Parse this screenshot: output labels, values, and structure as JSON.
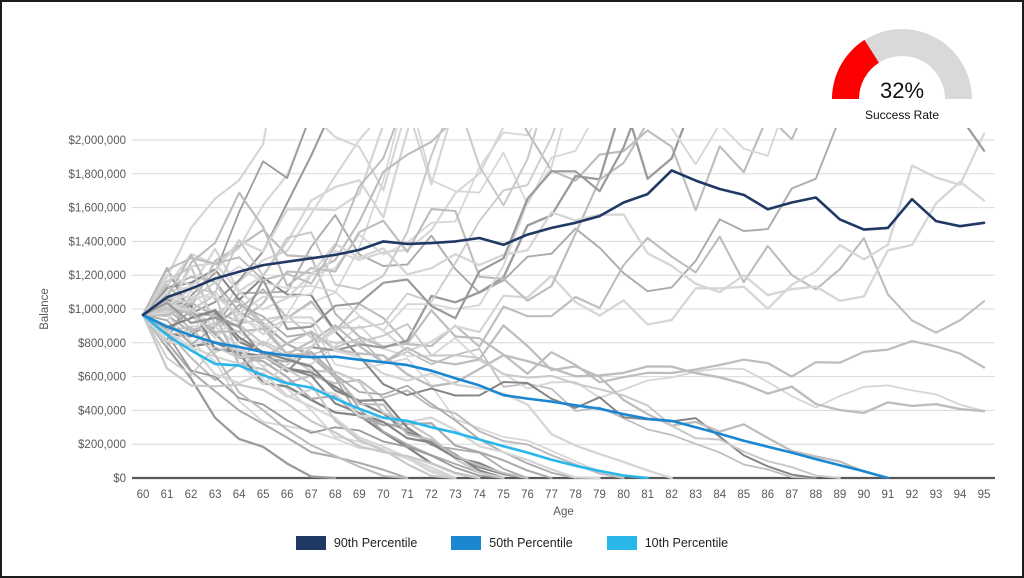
{
  "window": {
    "background": "#ffffff",
    "border_color": "#1c1c1c"
  },
  "gauge": {
    "value_label": "32%",
    "caption": "Success Rate",
    "percent": 32,
    "fill_color": "#ff0000",
    "track_color": "#d9d9d9"
  },
  "chart_data": {
    "type": "line",
    "title": "",
    "xlabel": "Age",
    "ylabel": "Balance",
    "xlim": [
      60,
      95
    ],
    "ylim": [
      0,
      2000000
    ],
    "y_tick_step": 200000,
    "grid": "horizontal",
    "legend_position": "bottom",
    "x_tick_labels": [
      "60",
      "61",
      "62",
      "63",
      "64",
      "65",
      "66",
      "67",
      "68",
      "69",
      "70",
      "71",
      "72",
      "73",
      "74",
      "75",
      "76",
      "77",
      "78",
      "79",
      "80",
      "81",
      "82",
      "83",
      "84",
      "85",
      "86",
      "87",
      "88",
      "89",
      "90",
      "91",
      "92",
      "93",
      "94",
      "95"
    ],
    "y_tick_labels": [
      "$0",
      "$200,000",
      "$400,000",
      "$600,000",
      "$800,000",
      "$1,000,000",
      "$1,200,000",
      "$1,400,000",
      "$1,600,000",
      "$1,800,000",
      "$2,000,000"
    ],
    "axis_color": "#595959",
    "gridline_color": "#d9d9d9",
    "start_age": 60,
    "series": [
      {
        "name": "90th Percentile",
        "color": "#203864",
        "values": [
          965000,
          1070000,
          1120000,
          1180000,
          1220000,
          1260000,
          1280000,
          1300000,
          1320000,
          1350000,
          1400000,
          1385000,
          1390000,
          1400000,
          1420000,
          1380000,
          1440000,
          1480000,
          1510000,
          1550000,
          1630000,
          1680000,
          1820000,
          1760000,
          1710000,
          1675000,
          1590000,
          1630000,
          1660000,
          1530000,
          1470000,
          1480000,
          1650000,
          1520000,
          1490000,
          1510000
        ]
      },
      {
        "name": "50th Percentile",
        "color": "#1b87d1",
        "values": [
          965000,
          895000,
          845000,
          800000,
          775000,
          745000,
          725000,
          715000,
          718000,
          700000,
          685000,
          668000,
          635000,
          590000,
          548000,
          490000,
          470000,
          452000,
          430000,
          410000,
          378000,
          350000,
          338000,
          300000,
          262000,
          220000,
          185000,
          150000,
          112000,
          75000,
          40000,
          0
        ]
      },
      {
        "name": "10th Percentile",
        "color": "#29b7ea",
        "values": [
          965000,
          845000,
          755000,
          675000,
          665000,
          608000,
          560000,
          535000,
          470000,
          410000,
          357000,
          338000,
          300000,
          268000,
          228000,
          188000,
          150000,
          108000,
          72000,
          42000,
          15000,
          0
        ]
      }
    ],
    "background_simulations": {
      "description": "~50 gray Monte Carlo trial paths fanning out from the common starting balance; unlucky trials hit $0 and end, lucky trials exceed the $2,000,000 axis maximum and are clipped",
      "count": 52,
      "seed": 11,
      "start_value": 965000,
      "withdrawal": 52000,
      "drift_base": 0.035,
      "drift_spread": 0.1,
      "sigma": 0.13,
      "colors": [
        "#d6d6d6",
        "#c9c9c9",
        "#bdbdbd",
        "#ababab",
        "#9a9a9a",
        "#858585"
      ]
    }
  }
}
